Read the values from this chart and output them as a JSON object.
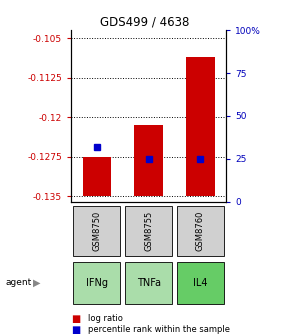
{
  "title": "GDS499 / 4638",
  "samples": [
    "GSM8750",
    "GSM8755",
    "GSM8760"
  ],
  "agents": [
    "IFNg",
    "TNFa",
    "IL4"
  ],
  "agent_colors": [
    "#aaddaa",
    "#aaddaa",
    "#66cc66"
  ],
  "log_ratios": [
    -0.1275,
    -0.1215,
    -0.1085
  ],
  "bar_bottom": -0.135,
  "percentile_ranks": [
    32,
    25,
    25
  ],
  "ylim": [
    -0.136,
    -0.1035
  ],
  "yticks": [
    -0.135,
    -0.1275,
    -0.12,
    -0.1125,
    -0.105
  ],
  "ytick_labels": [
    "-0.135",
    "-0.1275",
    "-0.12",
    "-0.1125",
    "-0.105"
  ],
  "right_yticks": [
    0,
    25,
    50,
    75,
    100
  ],
  "right_ytick_labels": [
    "0",
    "25",
    "50",
    "75",
    "100%"
  ],
  "bar_color": "#cc0000",
  "marker_color": "#0000cc",
  "bar_width": 0.55,
  "left_tick_color": "#cc0000",
  "right_tick_color": "#0000bb"
}
